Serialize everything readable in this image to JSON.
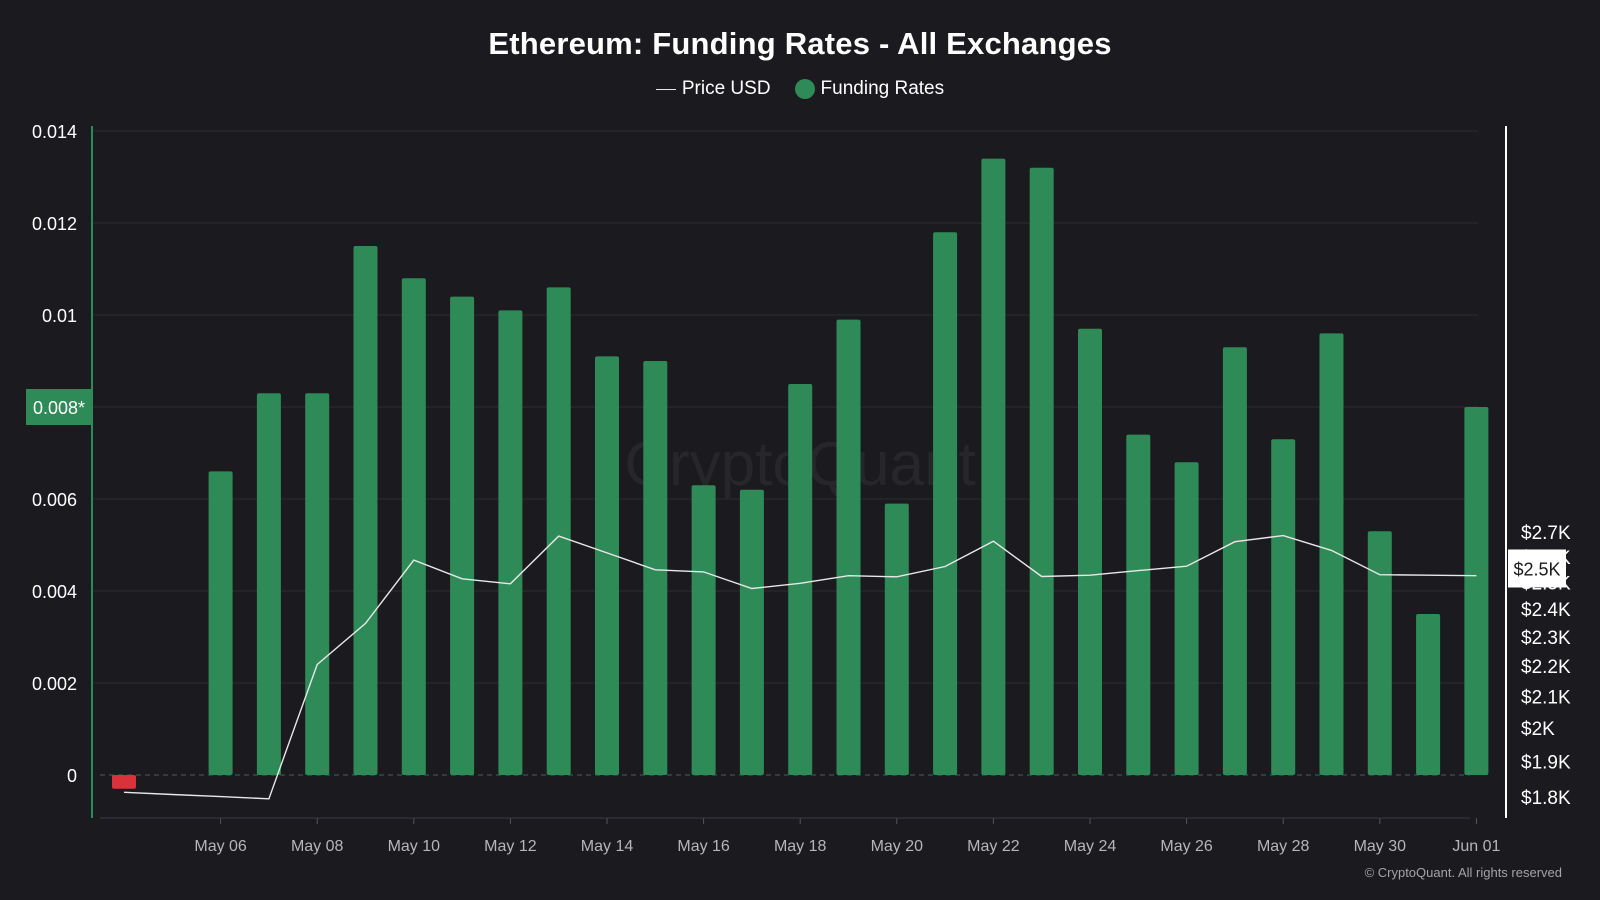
{
  "chart_data": {
    "type": "bar",
    "title": "Ethereum: Funding Rates - All Exchanges",
    "legend_position": "top-center",
    "grid": true,
    "x": [
      "May 04",
      "May 05",
      "May 06",
      "May 07",
      "May 08",
      "May 09",
      "May 10",
      "May 11",
      "May 12",
      "May 13",
      "May 14",
      "May 15",
      "May 16",
      "May 17",
      "May 18",
      "May 19",
      "May 20",
      "May 21",
      "May 22",
      "May 23",
      "May 24",
      "May 25",
      "May 26",
      "May 27",
      "May 28",
      "May 29",
      "May 30",
      "May 31",
      "Jun 01"
    ],
    "x_tick_labels": [
      "May 06",
      "May 08",
      "May 10",
      "May 12",
      "May 14",
      "May 16",
      "May 18",
      "May 20",
      "May 22",
      "May 24",
      "May 26",
      "May 28",
      "May 30",
      "Jun 01"
    ],
    "y_left": {
      "tick_labels": [
        "0",
        "0.002",
        "0.004",
        "0.006",
        "0.008",
        "0.01",
        "0.012",
        "0.014"
      ],
      "ylim": [
        -0.001,
        0.014
      ],
      "highlight_label": "0.008*"
    },
    "y_right": {
      "tick_labels": [
        "$1.8K",
        "$1.9K",
        "$2K",
        "$2.1K",
        "$2.2K",
        "$2.3K",
        "$2.4K",
        "$2.5K",
        "$2.6K",
        "$2.7K"
      ],
      "ylim": [
        1770,
        2720
      ],
      "scale": "log",
      "highlight_label": "$2.5K"
    },
    "series": [
      {
        "name": "Funding Rates",
        "kind": "bar",
        "axis": "left",
        "color": "#2e8b57",
        "negative_color": "#d9323b",
        "values": [
          -0.0003,
          0.0,
          0.0066,
          0.0083,
          0.0083,
          0.0115,
          0.0108,
          0.0104,
          0.0101,
          0.0106,
          0.0091,
          0.009,
          0.0063,
          0.0062,
          0.0085,
          0.0099,
          0.0059,
          0.0118,
          0.0134,
          0.0132,
          0.0097,
          0.0074,
          0.0068,
          0.0093,
          0.0073,
          0.0096,
          0.0053,
          0.0035,
          0.008
        ]
      },
      {
        "name": "Price USD",
        "kind": "line",
        "axis": "right",
        "color": "#e8e8e8",
        "points": [
          {
            "x": "May 04",
            "y": 1813
          },
          {
            "x": "May 05",
            "y": 1807
          },
          {
            "x": "May 06",
            "y": 1801
          },
          {
            "x": "May 07",
            "y": 1795
          },
          {
            "x": "May 08",
            "y": 2205
          },
          {
            "x": "May 09",
            "y": 2348
          },
          {
            "x": "May 10",
            "y": 2587
          },
          {
            "x": "May 11",
            "y": 2514
          },
          {
            "x": "May 12",
            "y": 2495
          },
          {
            "x": "May 13",
            "y": 2684
          },
          {
            "x": "May 14",
            "y": 2616
          },
          {
            "x": "May 15",
            "y": 2549
          },
          {
            "x": "May 16",
            "y": 2541
          },
          {
            "x": "May 17",
            "y": 2477
          },
          {
            "x": "May 18",
            "y": 2497
          },
          {
            "x": "May 19",
            "y": 2526
          },
          {
            "x": "May 20",
            "y": 2522
          },
          {
            "x": "May 21",
            "y": 2562
          },
          {
            "x": "May 22",
            "y": 2663
          },
          {
            "x": "May 23",
            "y": 2523
          },
          {
            "x": "May 24",
            "y": 2528
          },
          {
            "x": "May 25",
            "y": 2546
          },
          {
            "x": "May 26",
            "y": 2563
          },
          {
            "x": "May 27",
            "y": 2661
          },
          {
            "x": "May 28",
            "y": 2686
          },
          {
            "x": "May 29",
            "y": 2626
          },
          {
            "x": "May 30",
            "y": 2530
          },
          {
            "x": "May 31",
            "y": 2528
          },
          {
            "x": "Jun 01",
            "y": 2526
          }
        ]
      }
    ],
    "watermark": "CryptoQuant"
  },
  "footer": {
    "copyright": "© CryptoQuant. All rights reserved"
  }
}
